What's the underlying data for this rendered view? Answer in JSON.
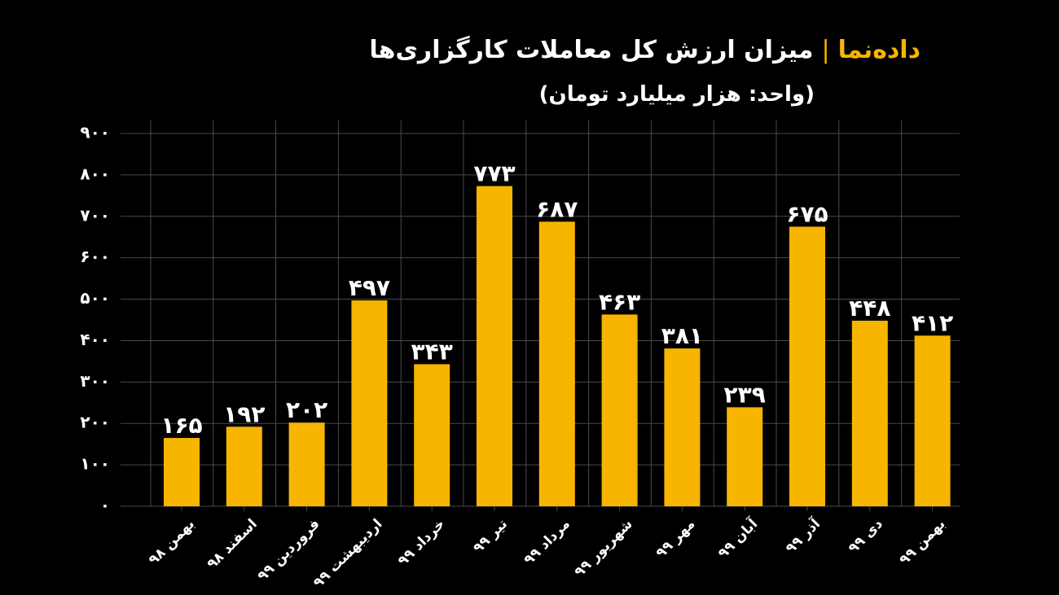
{
  "header": {
    "brand": "داده‌نما",
    "separator": "|",
    "title": "میزان ارزش کل معاملات کارگزاری‌ها",
    "subtitle": "(واحد: هزار میلیارد تومان)"
  },
  "colors": {
    "background": "#000000",
    "bar": "#f7b500",
    "grid": "#4a4a4a",
    "text": "#ffffff"
  },
  "chart_data": {
    "type": "bar",
    "title": "میزان ارزش کل معاملات کارگزاری‌ها",
    "subtitle": "(واحد: هزار میلیارد تومان)",
    "categories": [
      "بهمن ۹۸",
      "اسفند ۹۸",
      "فروردین ۹۹",
      "اردیبهشت ۹۹",
      "خرداد ۹۹",
      "تیر ۹۹",
      "مرداد ۹۹",
      "شهریور ۹۹",
      "مهر ۹۹",
      "آبان ۹۹",
      "آذر ۹۹",
      "دی ۹۹",
      "بهمن ۹۹"
    ],
    "values": [
      165,
      192,
      202,
      497,
      343,
      773,
      687,
      463,
      381,
      239,
      675,
      448,
      412
    ],
    "value_labels": [
      "۱۶۵",
      "۱۹۲",
      "۲۰۲",
      "۴۹۷",
      "۳۴۳",
      "۷۷۳",
      "۶۸۷",
      "۴۶۳",
      "۳۸۱",
      "۲۳۹",
      "۶۷۵",
      "۴۴۸",
      "۴۱۲"
    ],
    "yticks": [
      0,
      100,
      200,
      300,
      400,
      500,
      600,
      700,
      800,
      900
    ],
    "ytick_labels": [
      "۰",
      "۱۰۰",
      "۲۰۰",
      "۳۰۰",
      "۴۰۰",
      "۵۰۰",
      "۶۰۰",
      "۷۰۰",
      "۸۰۰",
      "۹۰۰"
    ],
    "ylim": [
      0,
      900
    ],
    "grid": true,
    "xlabel": "",
    "ylabel": ""
  }
}
